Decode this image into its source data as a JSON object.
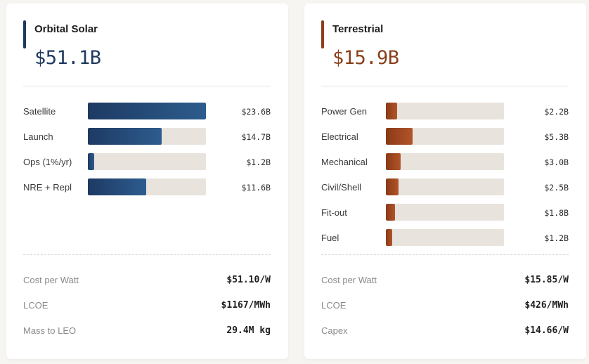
{
  "colors": {
    "orbital_accent": "#1f3a60",
    "terrestrial_accent": "#8b3f1a"
  },
  "chart_data": [
    {
      "type": "bar",
      "title": "Orbital Solar",
      "total": "$51.1B",
      "max": 23.6,
      "unit": "$B",
      "categories": [
        "Satellite",
        "Launch",
        "Ops (1%/yr)",
        "NRE + Repl"
      ],
      "values": [
        23.6,
        14.7,
        1.2,
        11.6
      ],
      "value_labels": [
        "$23.6B",
        "$14.7B",
        "$1.2B",
        "$11.6B"
      ]
    },
    {
      "type": "bar",
      "title": "Terrestrial",
      "total": "$15.9B",
      "max": 23.6,
      "unit": "$B",
      "categories": [
        "Power Gen",
        "Electrical",
        "Mechanical",
        "Civil/Shell",
        "Fit-out",
        "Fuel"
      ],
      "values": [
        2.2,
        5.3,
        3.0,
        2.5,
        1.8,
        1.2
      ],
      "value_labels": [
        "$2.2B",
        "$5.3B",
        "$3.0B",
        "$2.5B",
        "$1.8B",
        "$1.2B"
      ]
    }
  ],
  "orbital_metrics": [
    {
      "label": "Cost per Watt",
      "value": "$51.10/W"
    },
    {
      "label": "LCOE",
      "value": "$1167/MWh"
    },
    {
      "label": "Mass to LEO",
      "value": "29.4M kg"
    }
  ],
  "terrestrial_metrics": [
    {
      "label": "Cost per Watt",
      "value": "$15.85/W"
    },
    {
      "label": "LCOE",
      "value": "$426/MWh"
    },
    {
      "label": "Capex",
      "value": "$14.66/W"
    }
  ]
}
